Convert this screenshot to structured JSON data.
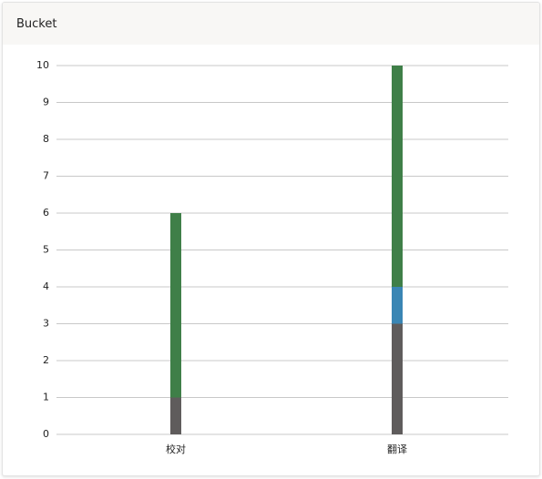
{
  "header": {
    "title": "Bucket"
  },
  "chart_data": {
    "type": "bar",
    "stacked": true,
    "categories": [
      "校对",
      "翻译"
    ],
    "series": [
      {
        "color": "#5f5c5c",
        "values": [
          1,
          3
        ]
      },
      {
        "color": "#3a86b4",
        "values": [
          0,
          1
        ]
      },
      {
        "color": "#3f7f48",
        "values": [
          5,
          6
        ]
      }
    ],
    "ylim": [
      0,
      10
    ],
    "yticks": [
      0,
      1,
      2,
      3,
      4,
      5,
      6,
      7,
      8,
      9,
      10
    ],
    "grid": true
  }
}
